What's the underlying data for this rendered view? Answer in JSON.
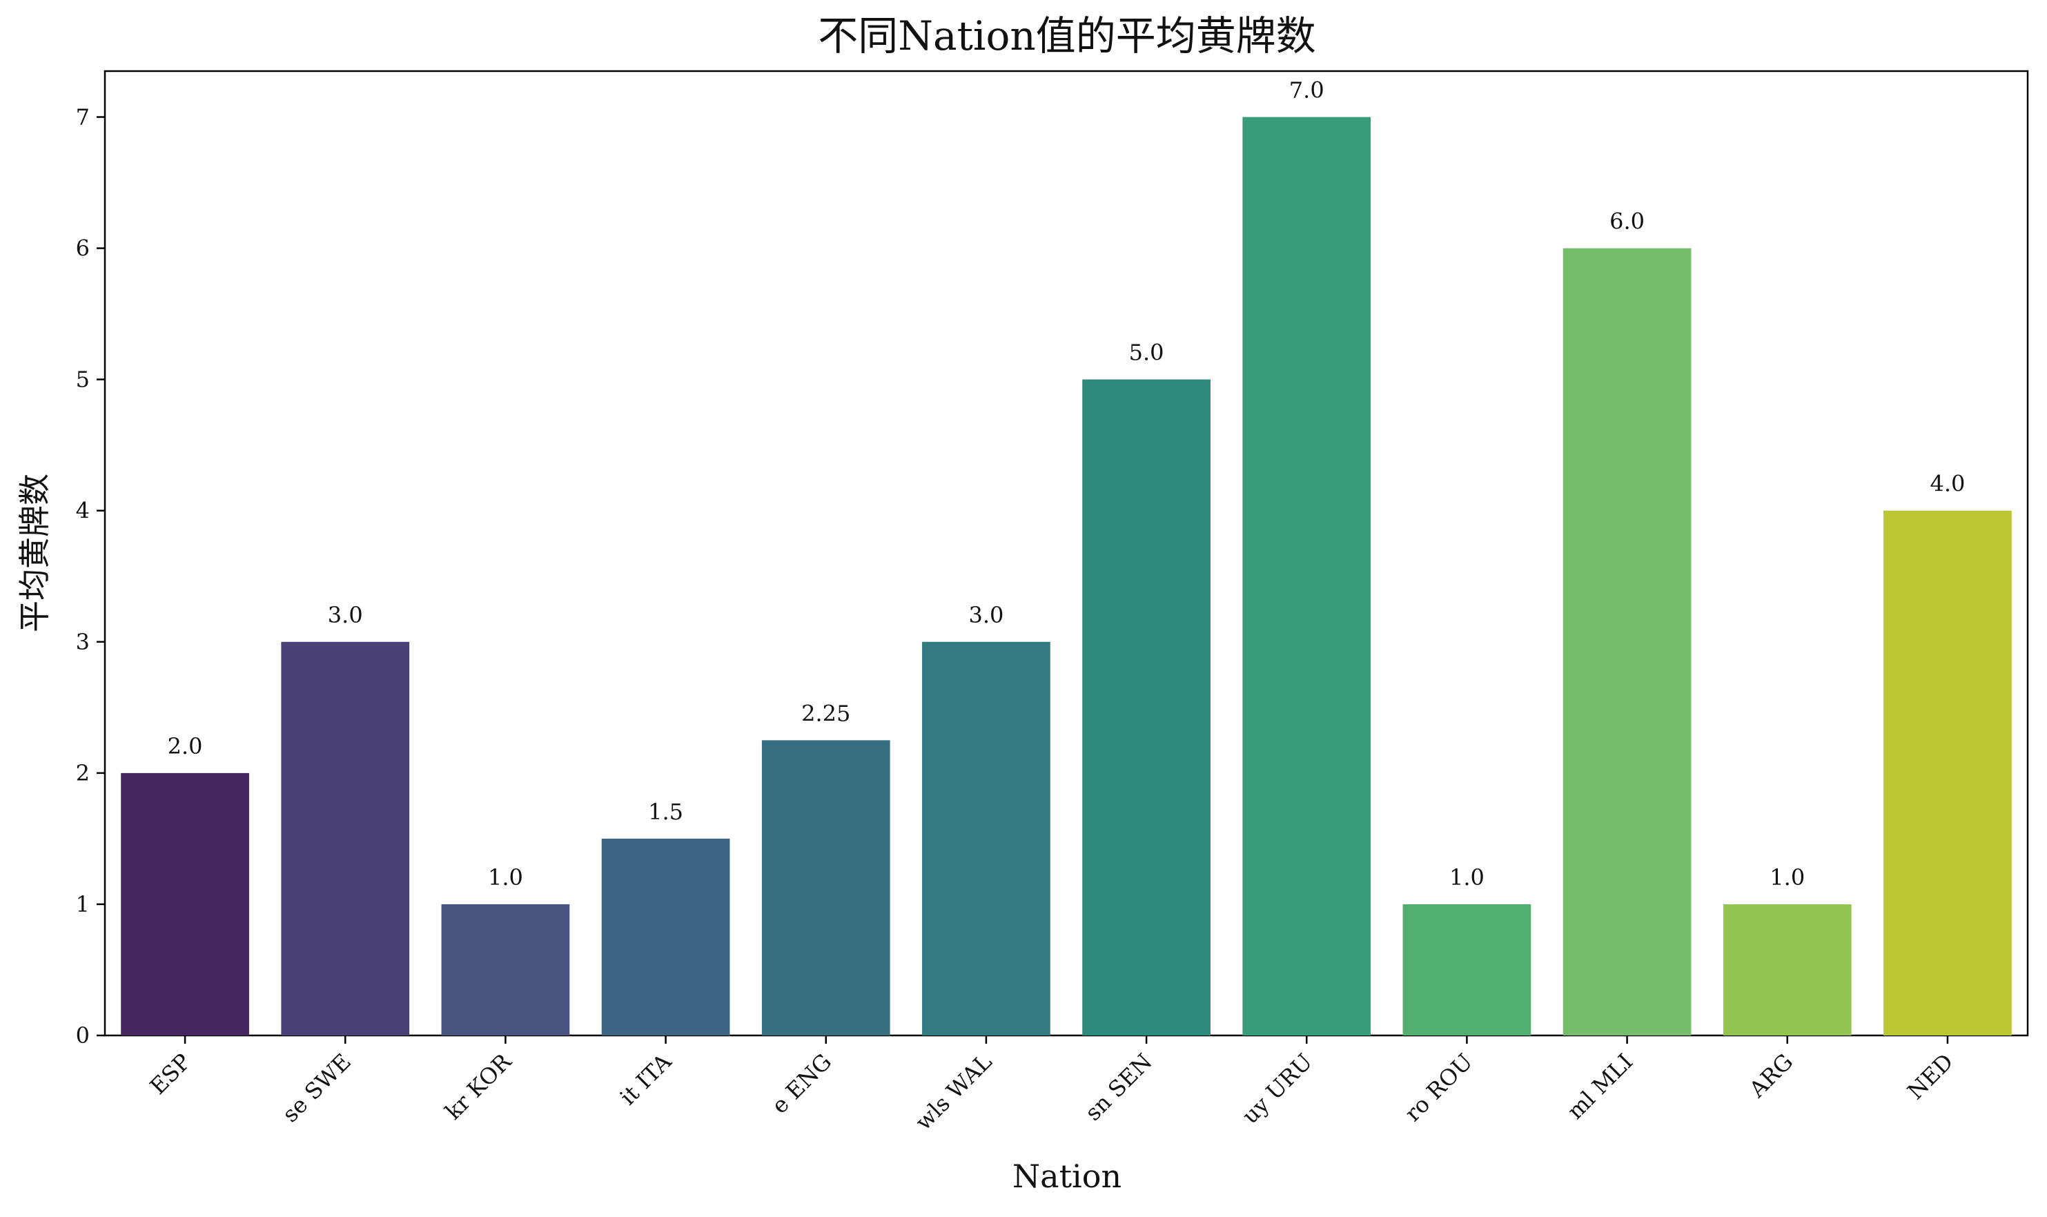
{
  "chart_data": {
    "type": "bar",
    "title": "不同Nation值的平均黄牌数",
    "xlabel": "Nation",
    "ylabel": "平均黄牌数",
    "categories": [
      "ESP",
      "se SWE",
      "kr KOR",
      "it ITA",
      "e ENG",
      "wls WAL",
      "sn SEN",
      "uy URU",
      "ro ROU",
      "ml MLI",
      "ARG",
      "NED"
    ],
    "values": [
      2.0,
      3.0,
      1.0,
      1.5,
      2.25,
      3.0,
      5.0,
      7.0,
      1.0,
      6.0,
      1.0,
      4.0
    ],
    "value_labels": [
      "2.0",
      "3.0",
      "1.0",
      "1.5",
      "2.25",
      "3.0",
      "5.0",
      "7.0",
      "1.0",
      "6.0",
      "1.0",
      "4.0"
    ],
    "yticks": [
      0,
      1,
      2,
      3,
      4,
      5,
      6,
      7
    ],
    "ylim": [
      0,
      7.35
    ],
    "colors": [
      "#472560",
      "#4a4076",
      "#48537f",
      "#3e6485",
      "#376f80",
      "#327b80",
      "#2f8a7e",
      "#389c7a",
      "#52b06f",
      "#74bc6a",
      "#93c451",
      "#bcc734"
    ],
    "grid": false,
    "legend": "none"
  }
}
